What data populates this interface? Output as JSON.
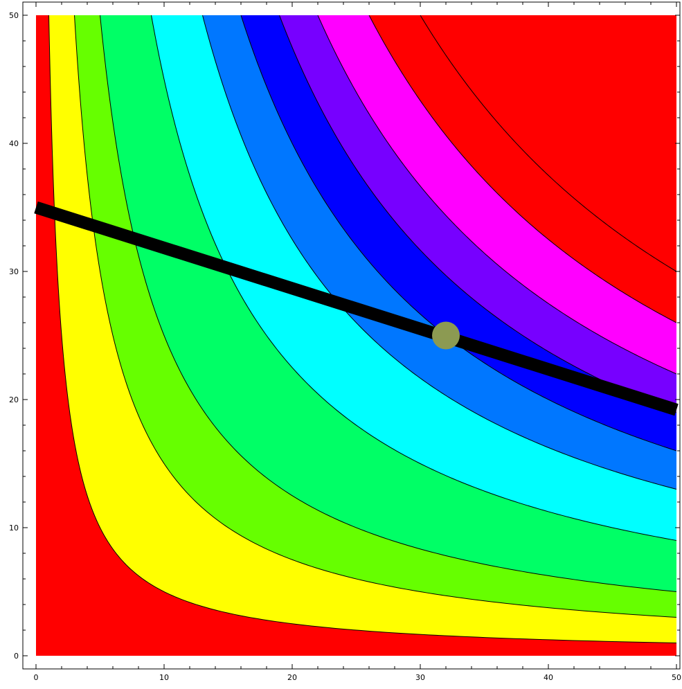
{
  "chart_data": {
    "type": "contour",
    "title": "",
    "xlabel": "",
    "ylabel": "",
    "xlim": [
      0,
      50
    ],
    "ylim": [
      0,
      50
    ],
    "x_ticks": [
      0,
      10,
      20,
      30,
      40,
      50
    ],
    "y_ticks": [
      0,
      10,
      20,
      30,
      40,
      50
    ],
    "x_tick_labels": [
      "0",
      "10",
      "20",
      "30",
      "40",
      "50"
    ],
    "y_tick_labels": [
      "0",
      "10",
      "20",
      "30",
      "40",
      "50"
    ],
    "grid": false,
    "legend": "none",
    "contour_levels": [
      50,
      150,
      250,
      450,
      650,
      800,
      950,
      1100,
      1300,
      1500
    ],
    "band_colors": [
      "#ff0000",
      "#ffff00",
      "#66ff00",
      "#00ff66",
      "#00ffff",
      "#0077ff",
      "#0000ff",
      "#7700ff",
      "#ff00ff",
      "#ff0000",
      "#ff0000"
    ],
    "band_value_description": "x*y",
    "budget_line": {
      "x": [
        0,
        50
      ],
      "y": [
        35,
        19.2
      ],
      "color": "#000000"
    },
    "marked_point": {
      "x": 32,
      "y": 25,
      "color": "#8c9a52"
    }
  }
}
